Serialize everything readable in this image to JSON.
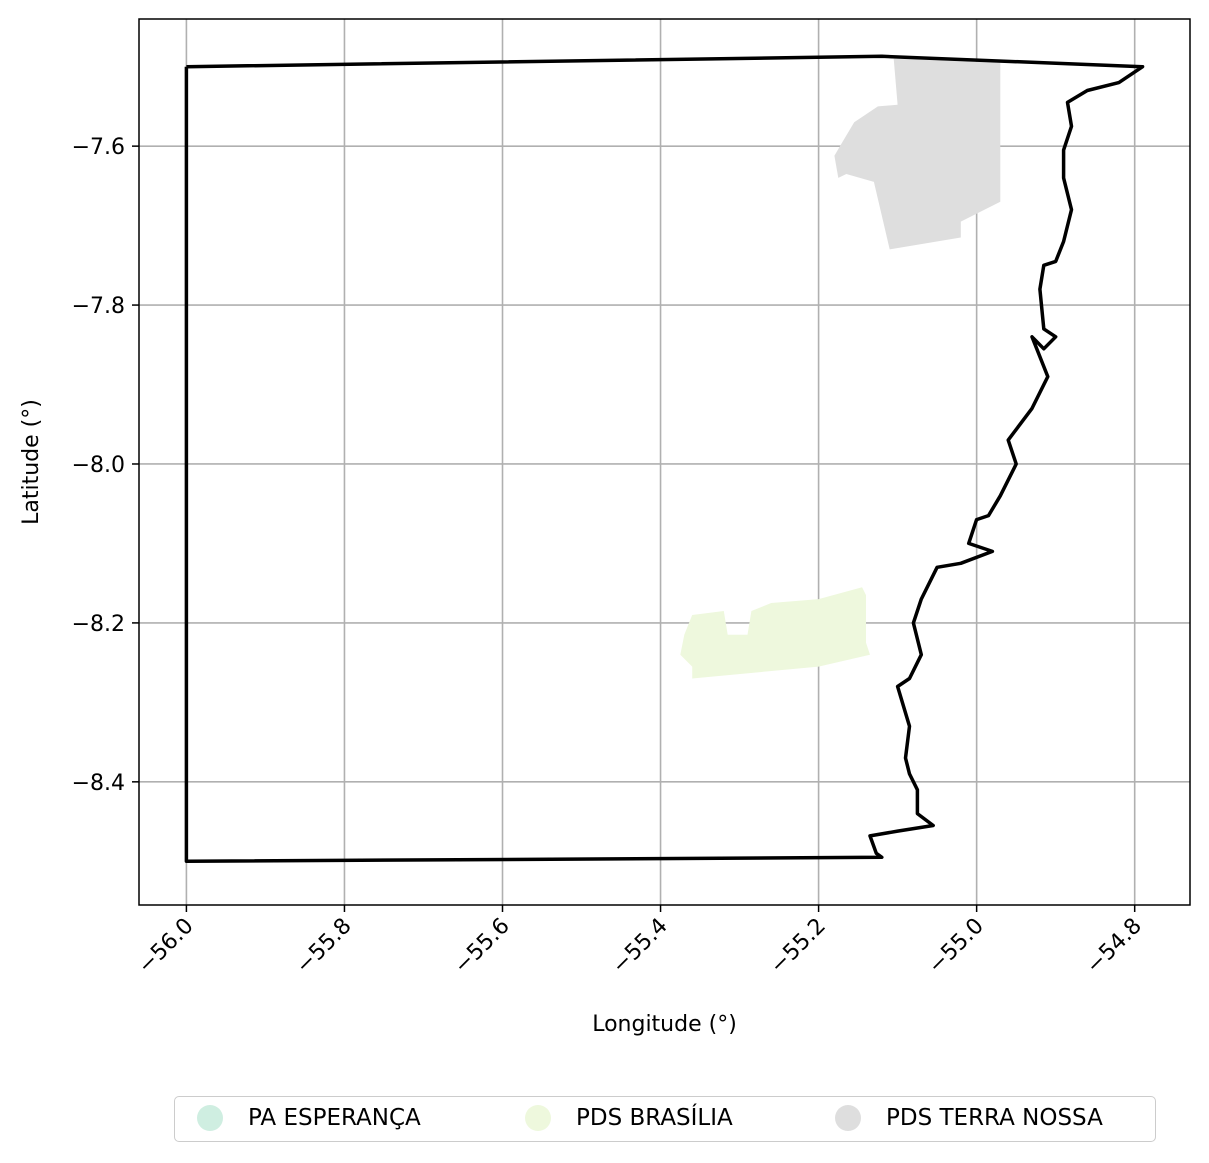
{
  "chart_data": {
    "type": "map",
    "xlabel": "Longitude (°)",
    "ylabel": "Latitude (°)",
    "xlim": [
      -56.06,
      -54.73
    ],
    "ylim": [
      -8.555,
      -7.44
    ],
    "xticks": [
      -56.0,
      -55.8,
      -55.6,
      -55.4,
      -55.2,
      -55.0,
      -54.8
    ],
    "xtick_labels": [
      "−56.0",
      "−55.8",
      "−55.6",
      "−55.4",
      "−55.2",
      "−55.0",
      "−54.8"
    ],
    "yticks": [
      -7.6,
      -7.8,
      -8.0,
      -8.2,
      -8.4
    ],
    "ytick_labels": [
      "−7.6",
      "−7.8",
      "−8.0",
      "−8.2",
      "−8.4"
    ],
    "grid": true,
    "legend_position": "below",
    "boundary": {
      "color": "#000000",
      "coords": [
        [
          -56.0,
          -7.5
        ],
        [
          -55.12,
          -7.487
        ],
        [
          -54.79,
          -7.5
        ],
        [
          -54.82,
          -7.52
        ],
        [
          -54.86,
          -7.53
        ],
        [
          -54.885,
          -7.545
        ],
        [
          -54.88,
          -7.575
        ],
        [
          -54.89,
          -7.605
        ],
        [
          -54.89,
          -7.64
        ],
        [
          -54.88,
          -7.68
        ],
        [
          -54.89,
          -7.72
        ],
        [
          -54.9,
          -7.745
        ],
        [
          -54.915,
          -7.75
        ],
        [
          -54.92,
          -7.78
        ],
        [
          -54.915,
          -7.83
        ],
        [
          -54.9,
          -7.84
        ],
        [
          -54.915,
          -7.855
        ],
        [
          -54.93,
          -7.84
        ],
        [
          -54.91,
          -7.89
        ],
        [
          -54.93,
          -7.93
        ],
        [
          -54.96,
          -7.97
        ],
        [
          -54.95,
          -8.0
        ],
        [
          -54.97,
          -8.04
        ],
        [
          -54.985,
          -8.065
        ],
        [
          -55.0,
          -8.07
        ],
        [
          -55.01,
          -8.1
        ],
        [
          -54.98,
          -8.11
        ],
        [
          -55.02,
          -8.125
        ],
        [
          -55.05,
          -8.13
        ],
        [
          -55.07,
          -8.17
        ],
        [
          -55.08,
          -8.2
        ],
        [
          -55.07,
          -8.24
        ],
        [
          -55.085,
          -8.27
        ],
        [
          -55.1,
          -8.28
        ],
        [
          -55.085,
          -8.33
        ],
        [
          -55.09,
          -8.37
        ],
        [
          -55.085,
          -8.39
        ],
        [
          -55.075,
          -8.41
        ],
        [
          -55.075,
          -8.44
        ],
        [
          -55.055,
          -8.455
        ],
        [
          -55.1,
          -8.462
        ],
        [
          -55.135,
          -8.468
        ],
        [
          -55.127,
          -8.49
        ],
        [
          -55.12,
          -8.495
        ],
        [
          -56.0,
          -8.5
        ],
        [
          -56.0,
          -7.5
        ]
      ]
    },
    "regions": [
      {
        "name": "PA ESPERANÇA",
        "color": "#cfeee1",
        "coords": []
      },
      {
        "name": "PDS BRASÍLIA",
        "color": "#eef8dd",
        "coords": [
          [
            -55.37,
            -8.215
          ],
          [
            -55.36,
            -8.19
          ],
          [
            -55.32,
            -8.185
          ],
          [
            -55.315,
            -8.215
          ],
          [
            -55.29,
            -8.215
          ],
          [
            -55.285,
            -8.185
          ],
          [
            -55.26,
            -8.175
          ],
          [
            -55.2,
            -8.17
          ],
          [
            -55.145,
            -8.155
          ],
          [
            -55.14,
            -8.165
          ],
          [
            -55.14,
            -8.225
          ],
          [
            -55.135,
            -8.24
          ],
          [
            -55.2,
            -8.255
          ],
          [
            -55.36,
            -8.27
          ],
          [
            -55.36,
            -8.255
          ],
          [
            -55.375,
            -8.24
          ]
        ]
      },
      {
        "name": "PDS TERRA NOSSA",
        "color": "#dedede",
        "coords": [
          [
            -55.105,
            -7.49
          ],
          [
            -55.1,
            -7.548
          ],
          [
            -55.125,
            -7.55
          ],
          [
            -55.155,
            -7.57
          ],
          [
            -55.17,
            -7.595
          ],
          [
            -55.18,
            -7.612
          ],
          [
            -55.175,
            -7.64
          ],
          [
            -55.165,
            -7.635
          ],
          [
            -55.13,
            -7.645
          ],
          [
            -55.11,
            -7.73
          ],
          [
            -55.02,
            -7.715
          ],
          [
            -55.02,
            -7.695
          ],
          [
            -54.97,
            -7.67
          ],
          [
            -54.97,
            -7.495
          ],
          [
            -55.105,
            -7.49
          ]
        ]
      }
    ],
    "legend": [
      {
        "label": "PA ESPERANÇA",
        "color": "#cfeee1"
      },
      {
        "label": "PDS BRASÍLIA",
        "color": "#eef8dd"
      },
      {
        "label": "PDS TERRA NOSSA",
        "color": "#dedede"
      }
    ]
  }
}
